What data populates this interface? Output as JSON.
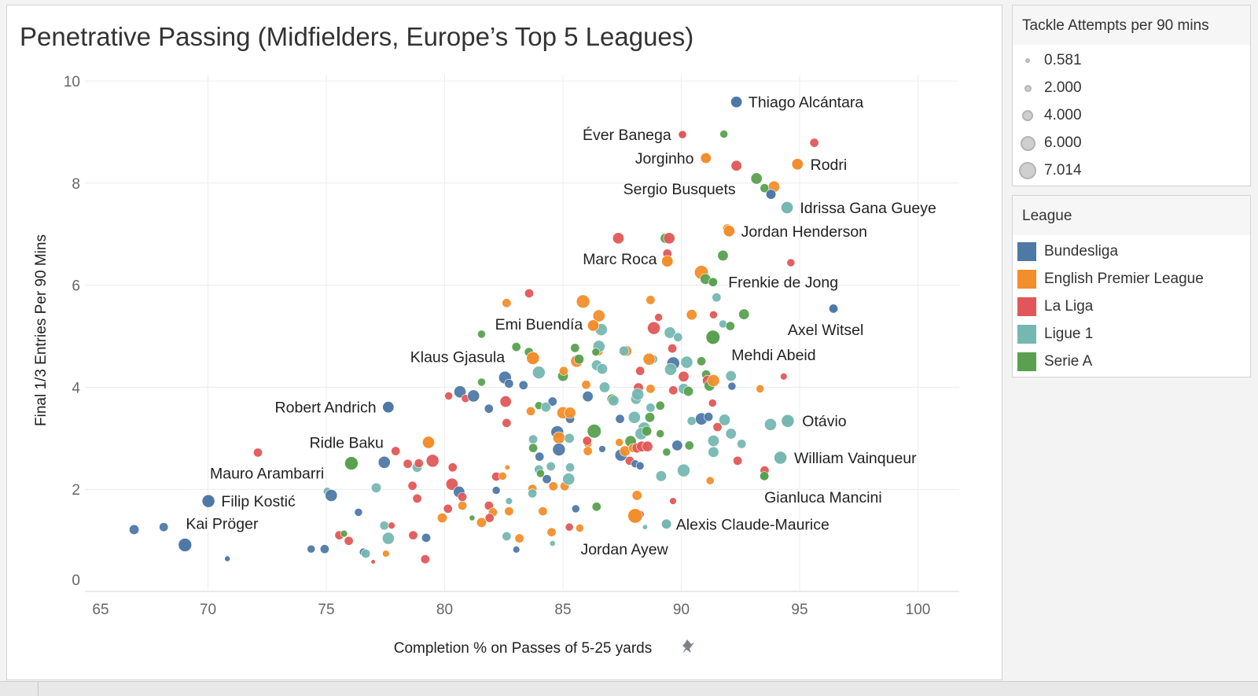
{
  "chart_data": {
    "type": "scatter",
    "title": "Penetrative Passing (Midfielders, Europe’s Top 5 Leagues)",
    "xlabel": "Completion % on Passes of 5-25 yards",
    "ylabel": "Final 1/3 Entries Per 90 Mins",
    "xlim": [
      65,
      102
    ],
    "ylim": [
      0,
      10
    ],
    "xticks": [
      65,
      70,
      75,
      80,
      85,
      90,
      95,
      100
    ],
    "yticks": [
      0,
      2,
      4,
      6,
      8,
      10
    ],
    "grid": true,
    "size_legend": {
      "title": "Tackle Attempts per 90 mins",
      "values": [
        "0.581",
        "2.000",
        "4.000",
        "6.000",
        "7.014"
      ]
    },
    "color_legend": {
      "title": "League",
      "placement": "right",
      "entries": [
        {
          "name": "Bundesliga",
          "color": "#4e79a7"
        },
        {
          "name": "English Premier League",
          "color": "#f28e2b"
        },
        {
          "name": "La Liga",
          "color": "#e15759"
        },
        {
          "name": "Ligue 1",
          "color": "#76b7b2"
        },
        {
          "name": "Serie A",
          "color": "#59a14f"
        }
      ]
    },
    "point_fields": [
      "completion_pct",
      "final_third_entries",
      "league_index",
      "tackle_attempts"
    ],
    "labeled_points": [
      {
        "name": "Thiago Alcántara",
        "x": 92.33,
        "y": 9.59,
        "league": 0,
        "tackles": 4
      },
      {
        "name": "Éver Banega",
        "x": 90.05,
        "y": 8.95,
        "league": 2,
        "tackles": 2
      },
      {
        "name": "Jorginho",
        "x": 91.04,
        "y": 8.49,
        "league": 1,
        "tackles": 3.5
      },
      {
        "name": "Rodri",
        "x": 94.91,
        "y": 8.37,
        "league": 1,
        "tackles": 4
      },
      {
        "name": "Sergio Busquets",
        "x": 93.79,
        "y": 7.78,
        "league": 0,
        "tackles": 3
      },
      {
        "name": "Idrissa Gana Gueye",
        "x": 94.47,
        "y": 7.52,
        "league": 3,
        "tackles": 4.5
      },
      {
        "name": "Jordan Henderson",
        "x": 92.02,
        "y": 7.06,
        "league": 1,
        "tackles": 4
      },
      {
        "name": "Marc Roca",
        "x": 89.41,
        "y": 6.47,
        "league": 1,
        "tackles": 4
      },
      {
        "name": "Frenkie de Jong",
        "x": 91.34,
        "y": 6.06,
        "league": 4,
        "tackles": 2.5
      },
      {
        "name": "Emi Buendía",
        "x": 86.28,
        "y": 5.21,
        "league": 1,
        "tackles": 4
      },
      {
        "name": "Axel Witsel",
        "x": 96.43,
        "y": 5.54,
        "league": 0,
        "tackles": 2.5
      },
      {
        "name": "Klaus Gjasula",
        "x": 83.73,
        "y": 4.57,
        "league": 1,
        "tackles": 5
      },
      {
        "name": "Mehdi Abeid",
        "x": 91.34,
        "y": 4.98,
        "league": 4,
        "tackles": 6
      },
      {
        "name": "Robert Andrich",
        "x": 77.62,
        "y": 3.61,
        "league": 0,
        "tackles": 4
      },
      {
        "name": "Otávio",
        "x": 94.5,
        "y": 3.34,
        "league": 3,
        "tackles": 5
      },
      {
        "name": "Ridle Baku",
        "x": 79.32,
        "y": 2.92,
        "league": 1,
        "tackles": 4.5
      },
      {
        "name": "William Vainqueur",
        "x": 94.19,
        "y": 2.62,
        "league": 3,
        "tackles": 5
      },
      {
        "name": "Mauro Arambarri",
        "x": 76.06,
        "y": 2.51,
        "league": 4,
        "tackles": 5.5
      },
      {
        "name": "Gianluca Mancini",
        "x": 93.51,
        "y": 2.26,
        "league": 4,
        "tackles": 2.5
      },
      {
        "name": "Filip Kostić",
        "x": 70.02,
        "y": 1.77,
        "league": 0,
        "tackles": 5
      },
      {
        "name": "Alexis Claude-Maurice",
        "x": 89.37,
        "y": 1.32,
        "league": 3,
        "tackles": 3
      },
      {
        "name": "Kai Pröger",
        "x": 69.03,
        "y": 0.91,
        "league": 0,
        "tackles": 5.5
      },
      {
        "name": "Jordan Ayew",
        "x": 88.05,
        "y": 1.48,
        "league": 1,
        "tackles": 6.5
      }
    ],
    "points": [
      [
        66.88,
        1.21,
        0,
        3
      ],
      [
        68.13,
        1.26,
        0,
        2.5
      ],
      [
        70.82,
        0.64,
        0,
        1
      ],
      [
        72.11,
        2.72,
        2,
        2.5
      ],
      [
        74.36,
        0.83,
        0,
        2
      ],
      [
        74.93,
        0.83,
        0,
        2.5
      ],
      [
        75.04,
        1.96,
        3,
        2
      ],
      [
        75.21,
        1.88,
        0,
        4.5
      ],
      [
        76.36,
        1.55,
        0,
        2
      ],
      [
        75.55,
        1.1,
        2,
        2.5
      ],
      [
        75.75,
        1.13,
        4,
        1.5
      ],
      [
        75.95,
        0.99,
        2,
        2.5
      ],
      [
        76.57,
        0.77,
        0,
        2
      ],
      [
        76.67,
        0.74,
        3,
        2.5
      ],
      [
        76.98,
        0.58,
        2,
        0.6
      ],
      [
        77.11,
        2.03,
        3,
        3
      ],
      [
        77.45,
        2.53,
        0,
        4.5
      ],
      [
        77.45,
        1.29,
        3,
        2.5
      ],
      [
        77.52,
        0.74,
        1,
        1.5
      ],
      [
        77.62,
        1.04,
        3,
        4.5
      ],
      [
        77.76,
        1.29,
        2,
        1.5
      ],
      [
        77.93,
        2.75,
        2,
        2.5
      ],
      [
        78.44,
        2.5,
        2,
        2.5
      ],
      [
        78.84,
        2.43,
        3,
        3
      ],
      [
        78.91,
        2.51,
        2,
        2.5
      ],
      [
        78.64,
        2.07,
        2,
        2.5
      ],
      [
        78.84,
        1.82,
        2,
        2.5
      ],
      [
        78.67,
        1.1,
        2,
        2.5
      ],
      [
        79.22,
        1.05,
        0,
        2.5
      ],
      [
        79.18,
        0.63,
        2,
        2.5
      ],
      [
        79.49,
        2.56,
        2,
        5
      ],
      [
        80.17,
        3.83,
        2,
        2
      ],
      [
        80.65,
        3.91,
        0,
        4.5
      ],
      [
        80.88,
        3.78,
        2,
        2
      ],
      [
        81.22,
        3.83,
        0,
        4.5
      ],
      [
        80.34,
        2.43,
        2,
        2.5
      ],
      [
        80.31,
        2.1,
        2,
        4.5
      ],
      [
        80.61,
        1.95,
        0,
        4
      ],
      [
        80.75,
        1.85,
        2,
        2.5
      ],
      [
        80.14,
        1.62,
        2,
        2.5
      ],
      [
        80.75,
        1.68,
        1,
        2.5
      ],
      [
        79.9,
        1.44,
        1,
        3
      ],
      [
        81.16,
        1.44,
        4,
        1
      ],
      [
        81.56,
        1.35,
        1,
        3
      ],
      [
        81.56,
        5.04,
        4,
        2
      ],
      [
        81.56,
        4.1,
        4,
        2
      ],
      [
        81.87,
        3.58,
        0,
        2.5
      ],
      [
        82.18,
        2.25,
        2,
        2.5
      ],
      [
        82.18,
        1.98,
        0,
        2
      ],
      [
        81.87,
        1.68,
        2,
        2.5
      ],
      [
        82.04,
        1.55,
        1,
        2.5
      ],
      [
        81.9,
        1.44,
        2,
        2.5
      ],
      [
        82.45,
        2.26,
        1,
        2
      ],
      [
        82.65,
        2.43,
        1,
        0.8
      ],
      [
        82.72,
        1.77,
        3,
        1.5
      ],
      [
        82.72,
        1.57,
        1,
        2.5
      ],
      [
        82.62,
        1.08,
        3,
        2.5
      ],
      [
        83.03,
        0.82,
        0,
        1.5
      ],
      [
        83.16,
        1.04,
        1,
        2.5
      ],
      [
        82.58,
        3.72,
        2,
        4
      ],
      [
        82.62,
        3.3,
        2,
        2.5
      ],
      [
        82.55,
        4.19,
        0,
        5
      ],
      [
        82.72,
        4.07,
        0,
        2.5
      ],
      [
        82.62,
        5.65,
        1,
        2.5
      ],
      [
        83.57,
        5.84,
        2,
        2.5
      ],
      [
        83.03,
        4.79,
        4,
        2.5
      ],
      [
        83.56,
        4.69,
        4,
        2.5
      ],
      [
        83.33,
        4.04,
        0,
        2.5
      ],
      [
        83.64,
        3.53,
        1,
        2.5
      ],
      [
        83.98,
        4.29,
        3,
        5
      ],
      [
        83.98,
        3.64,
        4,
        2
      ],
      [
        83.74,
        2.98,
        3,
        2.5
      ],
      [
        83.74,
        2.81,
        4,
        2.5
      ],
      [
        84.01,
        2.64,
        0,
        2.5
      ],
      [
        83.98,
        2.39,
        3,
        2.5
      ],
      [
        84.05,
        2.31,
        4,
        2
      ],
      [
        83.71,
        2.01,
        1,
        2.5
      ],
      [
        83.71,
        1.92,
        3,
        2.5
      ],
      [
        84.32,
        2.2,
        0,
        2.5
      ],
      [
        84.15,
        1.57,
        1,
        2.5
      ],
      [
        84.56,
        3.72,
        0,
        2.5
      ],
      [
        84.28,
        3.61,
        3,
        3
      ],
      [
        85.0,
        3.5,
        1,
        4.5
      ],
      [
        85.3,
        3.38,
        0,
        2.5
      ],
      [
        85.3,
        3.5,
        1,
        4
      ],
      [
        84.76,
        3.12,
        0,
        5
      ],
      [
        84.83,
        3.01,
        1,
        4.5
      ],
      [
        84.83,
        2.78,
        0,
        5
      ],
      [
        85.27,
        3.0,
        3,
        3
      ],
      [
        84.49,
        2.45,
        3,
        2.5
      ],
      [
        84.59,
        2.06,
        1,
        2.5
      ],
      [
        85.07,
        2.06,
        1,
        2.5
      ],
      [
        85.3,
        2.43,
        3,
        2.5
      ],
      [
        85.24,
        2.2,
        3,
        4.5
      ],
      [
        85.27,
        1.26,
        2,
        2
      ],
      [
        85.71,
        1.24,
        1,
        2
      ],
      [
        84.56,
        0.94,
        3,
        1
      ],
      [
        84.52,
        1.16,
        1,
        2.5
      ],
      [
        85.54,
        1.62,
        0,
        2
      ],
      [
        85.0,
        4.22,
        4,
        3.5
      ],
      [
        85.03,
        4.32,
        1,
        2.5
      ],
      [
        85.51,
        4.77,
        4,
        2.5
      ],
      [
        85.58,
        4.51,
        1,
        4.5
      ],
      [
        85.68,
        4.55,
        4,
        3
      ],
      [
        85.85,
        5.68,
        1,
        5.5
      ],
      [
        86.52,
        5.4,
        1,
        4.5
      ],
      [
        86.62,
        5.13,
        3,
        4.5
      ],
      [
        86.49,
        4.71,
        1,
        3
      ],
      [
        86.52,
        4.8,
        3,
        4.5
      ],
      [
        86.39,
        4.69,
        4,
        2
      ],
      [
        86.43,
        4.43,
        3,
        3.5
      ],
      [
        86.66,
        4.36,
        3,
        3.5
      ],
      [
        85.98,
        4.05,
        1,
        2.5
      ],
      [
        86.05,
        3.82,
        0,
        3.5
      ],
      [
        86.05,
        2.89,
        1,
        2
      ],
      [
        86.02,
        2.95,
        2,
        2.5
      ],
      [
        86.05,
        2.75,
        1,
        2.5
      ],
      [
        86.32,
        3.14,
        4,
        6
      ],
      [
        86.66,
        2.79,
        0,
        1.5
      ],
      [
        86.42,
        1.66,
        4,
        2.5
      ],
      [
        86.76,
        4.0,
        3,
        3.5
      ],
      [
        87.1,
        3.77,
        1,
        2.5
      ],
      [
        87.07,
        3.77,
        4,
        3
      ],
      [
        87.14,
        3.74,
        3,
        3.5
      ],
      [
        87.68,
        4.71,
        1,
        3.5
      ],
      [
        87.58,
        4.71,
        3,
        3
      ],
      [
        87.38,
        2.92,
        1,
        2
      ],
      [
        87.41,
        3.38,
        0,
        2.5
      ],
      [
        87.45,
        2.67,
        0,
        4.5
      ],
      [
        87.62,
        2.75,
        1,
        3.5
      ],
      [
        87.34,
        6.92,
        2,
        4
      ],
      [
        87.82,
        2.56,
        2,
        2.5
      ],
      [
        87.86,
        2.94,
        4,
        4
      ],
      [
        87.96,
        2.81,
        1,
        2.5
      ],
      [
        88.13,
        2.81,
        2,
        3
      ],
      [
        88.33,
        2.84,
        2,
        3.5
      ],
      [
        88.57,
        2.84,
        2,
        3.5
      ],
      [
        88.09,
        3.77,
        3,
        3.5
      ],
      [
        88.19,
        3.99,
        2,
        3
      ],
      [
        88.16,
        3.86,
        3,
        4.5
      ],
      [
        88.02,
        3.41,
        3,
        4.5
      ],
      [
        88.43,
        3.2,
        3,
        4.5
      ],
      [
        88.3,
        3.09,
        3,
        4.5
      ],
      [
        88.54,
        3.14,
        4,
        3
      ],
      [
        88.05,
        2.5,
        0,
        2
      ],
      [
        88.26,
        2.46,
        0,
        2
      ],
      [
        88.13,
        1.88,
        1,
        3
      ],
      [
        88.26,
        1.51,
        2,
        2
      ],
      [
        88.47,
        1.26,
        3,
        0.8
      ],
      [
        88.7,
        5.71,
        1,
        2.5
      ],
      [
        89.04,
        5.37,
        2,
        2
      ],
      [
        88.84,
        5.16,
        2,
        5
      ],
      [
        88.81,
        4.55,
        3,
        2.5
      ],
      [
        88.64,
        4.55,
        1,
        4.5
      ],
      [
        88.26,
        4.32,
        2,
        2.5
      ],
      [
        88.7,
        3.6,
        3,
        2.5
      ],
      [
        88.67,
        3.41,
        4,
        3
      ],
      [
        88.7,
        3.97,
        1,
        2.5
      ],
      [
        89.11,
        3.64,
        4,
        2.5
      ],
      [
        89.11,
        3.09,
        4,
        2
      ],
      [
        89.15,
        2.26,
        3,
        3.5
      ],
      [
        89.65,
        1.77,
        2,
        1.5
      ],
      [
        89.38,
        2.73,
        4,
        2
      ],
      [
        89.32,
        6.92,
        4,
        3
      ],
      [
        89.49,
        6.92,
        2,
        4
      ],
      [
        89.52,
        5.07,
        3,
        4
      ],
      [
        89.86,
        4.98,
        3,
        2.5
      ],
      [
        89.62,
        4.76,
        2,
        2.5
      ],
      [
        89.66,
        4.47,
        0,
        5
      ],
      [
        89.55,
        4.35,
        3,
        4.5
      ],
      [
        89.66,
        3.94,
        2,
        2.5
      ],
      [
        90.1,
        3.97,
        3,
        3.5
      ],
      [
        90.1,
        4.21,
        2,
        3.5
      ],
      [
        90.3,
        3.92,
        4,
        3
      ],
      [
        90.23,
        4.49,
        3,
        4.5
      ],
      [
        89.83,
        2.86,
        0,
        3.5
      ],
      [
        90.34,
        2.86,
        4,
        2.5
      ],
      [
        90.1,
        2.37,
        3,
        5
      ],
      [
        90.44,
        3.34,
        3,
        2.5
      ],
      [
        90.85,
        3.38,
        0,
        4.5
      ],
      [
        91.15,
        3.42,
        0,
        2.5
      ],
      [
        90.85,
        4.51,
        4,
        2.5
      ],
      [
        91.05,
        4.25,
        4,
        2.5
      ],
      [
        91.12,
        4.13,
        2,
        3.5
      ],
      [
        91.19,
        4.03,
        4,
        3.5
      ],
      [
        91.36,
        4.13,
        1,
        4.5
      ],
      [
        90.44,
        5.42,
        1,
        3.5
      ],
      [
        91.36,
        5.42,
        2,
        2
      ],
      [
        91.49,
        5.76,
        3,
        2.5
      ],
      [
        91.76,
        6.58,
        4,
        3.5
      ],
      [
        91.53,
        3.22,
        2,
        2.5
      ],
      [
        91.32,
        3.69,
        2,
        2
      ],
      [
        91.36,
        2.95,
        3,
        4
      ],
      [
        91.36,
        2.73,
        3,
        3.5
      ],
      [
        91.83,
        3.36,
        3,
        4
      ],
      [
        91.22,
        2.17,
        1,
        2
      ],
      [
        92.1,
        3.09,
        3,
        3.5
      ],
      [
        92.1,
        4.22,
        3,
        3.5
      ],
      [
        92.14,
        4.02,
        0,
        2
      ],
      [
        91.76,
        5.24,
        3,
        2
      ],
      [
        92.07,
        5.2,
        4,
        2.5
      ],
      [
        92.65,
        5.43,
        4,
        3.5
      ],
      [
        92.55,
        2.89,
        3,
        2.5
      ],
      [
        92.38,
        2.56,
        2,
        2.5
      ],
      [
        93.33,
        3.97,
        1,
        2
      ],
      [
        93.77,
        3.27,
        3,
        4.5
      ],
      [
        94.33,
        4.21,
        2,
        1.5
      ],
      [
        94.63,
        6.44,
        2,
        2
      ],
      [
        95.62,
        8.79,
        2,
        2.5
      ],
      [
        91.8,
        8.96,
        4,
        2
      ],
      [
        92.33,
        8.34,
        2,
        3.5
      ],
      [
        93.18,
        8.09,
        4,
        4
      ],
      [
        93.52,
        7.9,
        4,
        2.5
      ],
      [
        93.92,
        7.93,
        1,
        4
      ],
      [
        91.94,
        7.11,
        1,
        2.5
      ],
      [
        89.41,
        6.62,
        2,
        2.5
      ],
      [
        90.85,
        6.25,
        1,
        6
      ],
      [
        91.02,
        6.12,
        4,
        3.5
      ],
      [
        93.52,
        2.37,
        2,
        2.5
      ]
    ]
  }
}
